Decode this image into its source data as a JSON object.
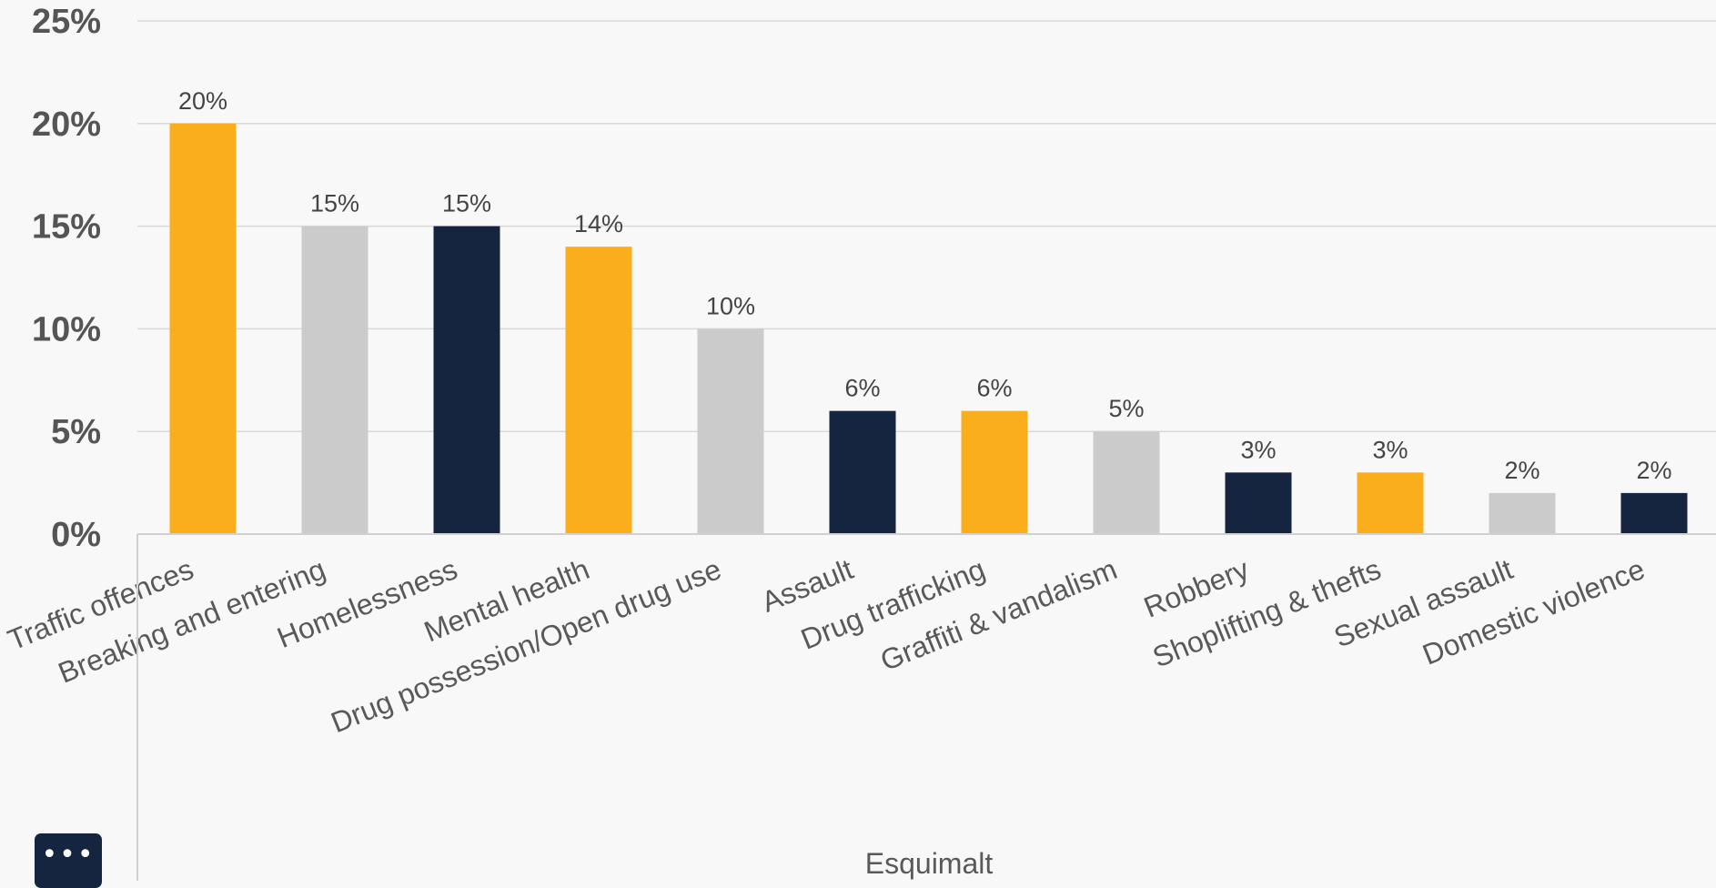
{
  "chart_data": {
    "type": "bar",
    "title": "",
    "xlabel": "Esquimalt",
    "ylabel": "",
    "categories": [
      "Traffic offences",
      "Breaking and entering",
      "Homelessness",
      "Mental health",
      "Drug possession/Open drug use",
      "Assault",
      "Drug trafficking",
      "Graffiti & vandalism",
      "Robbery",
      "Shoplifting & thefts",
      "Sexual assault",
      "Domestic violence"
    ],
    "values": [
      20,
      15,
      15,
      14,
      10,
      6,
      6,
      5,
      3,
      3,
      2,
      2
    ],
    "data_labels": [
      "20%",
      "15%",
      "15%",
      "14%",
      "10%",
      "6%",
      "6%",
      "5%",
      "3%",
      "3%",
      "2%",
      "2%"
    ],
    "yticks": [
      0,
      5,
      10,
      15,
      20,
      25
    ],
    "ytick_labels": [
      "0%",
      "5%",
      "10%",
      "15%",
      "20%",
      "25%"
    ],
    "ylim": [
      0,
      25
    ],
    "grid": true,
    "legend": "none",
    "bar_colors": [
      "#fbae1b",
      "#cbcbcb",
      "#15243f",
      "#fbae1b",
      "#cbcbcb",
      "#15243f",
      "#fbae1b",
      "#cbcbcb",
      "#15243f",
      "#fbae1b",
      "#cbcbcb",
      "#15243f"
    ],
    "gridline_color": "#d9d9d9"
  },
  "controls": {
    "more_label": "•••",
    "more_icon": "more-horizontal-icon"
  }
}
